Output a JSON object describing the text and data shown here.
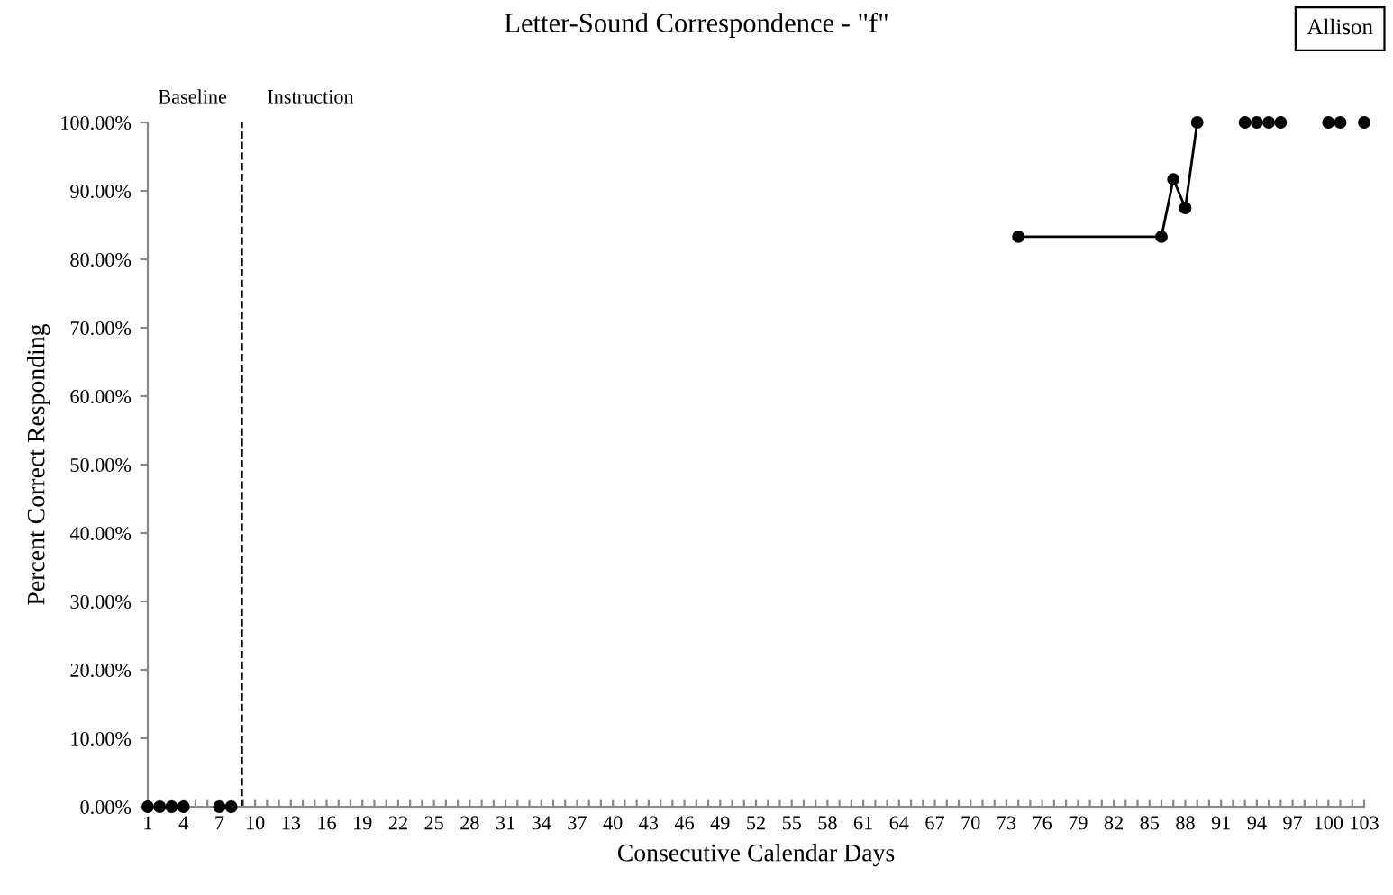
{
  "chart_data": {
    "type": "line",
    "title": "Letter-Sound Correspondence - \"f\"",
    "xlabel": "Consecutive Calendar Days",
    "ylabel": "Percent Correct Responding",
    "annotations": [
      "Baseline",
      "Instruction",
      "Allison"
    ],
    "series": [
      {
        "type": "scatter",
        "color": "#000000",
        "x": [
          1,
          2,
          3,
          4,
          7,
          8
        ],
        "values": [
          0,
          0,
          0,
          0,
          0,
          0
        ]
      },
      {
        "color": "#000000",
        "x": [
          74,
          86,
          87,
          88,
          89,
          90,
          93,
          94,
          95,
          96,
          97,
          100,
          101,
          102,
          103
        ],
        "values": [
          83.3,
          83.3,
          91.7,
          87.5,
          100,
          null,
          100,
          100,
          100,
          100,
          null,
          100,
          100,
          null,
          100
        ]
      }
    ],
    "marker": "circle",
    "line_style": "solid",
    "xlim": [
      1,
      103
    ],
    "xticks": [
      1,
      {
        "value": 2,
        "label": null
      },
      {
        "value": 3,
        "label": null
      },
      4,
      {
        "value": 5,
        "label": null
      },
      {
        "value": 6,
        "label": null
      },
      7,
      {
        "value": 8,
        "label": null
      },
      {
        "value": 9,
        "label": null
      },
      10,
      {
        "value": 11,
        "label": null
      },
      {
        "value": 12,
        "label": null
      },
      13,
      {
        "value": 14,
        "label": null
      },
      {
        "value": 15,
        "label": null
      },
      16,
      {
        "value": 17,
        "label": null
      },
      {
        "value": 18,
        "label": null
      },
      19,
      {
        "value": 20,
        "label": null
      },
      {
        "value": 21,
        "label": null
      },
      22,
      {
        "value": 23,
        "label": null
      },
      {
        "value": 24,
        "label": null
      },
      25,
      {
        "value": 26,
        "label": null
      },
      {
        "value": 27,
        "label": null
      },
      28,
      {
        "value": 29,
        "label": null
      },
      {
        "value": 30,
        "label": null
      },
      31,
      {
        "value": 32,
        "label": null
      },
      {
        "value": 33,
        "label": null
      },
      34,
      {
        "value": 35,
        "label": null
      },
      {
        "value": 36,
        "label": null
      },
      37,
      {
        "value": 38,
        "label": null
      },
      {
        "value": 39,
        "label": null
      },
      40,
      {
        "value": 41,
        "label": null
      },
      {
        "value": 42,
        "label": null
      },
      43,
      {
        "value": 44,
        "label": null
      },
      {
        "value": 45,
        "label": null
      },
      46,
      {
        "value": 47,
        "label": null
      },
      {
        "value": 48,
        "label": null
      },
      49,
      {
        "value": 50,
        "label": null
      },
      {
        "value": 51,
        "label": null
      },
      52,
      {
        "value": 53,
        "label": null
      },
      {
        "value": 54,
        "label": null
      },
      55,
      {
        "value": 56,
        "label": null
      },
      {
        "value": 57,
        "label": null
      },
      58,
      {
        "value": 59,
        "label": null
      },
      {
        "value": 60,
        "label": null
      },
      61,
      {
        "value": 62,
        "label": null
      },
      {
        "value": 63,
        "label": null
      },
      64,
      {
        "value": 65,
        "label": null
      },
      {
        "value": 66,
        "label": null
      },
      67,
      {
        "value": 68,
        "label": null
      },
      {
        "value": 69,
        "label": null
      },
      70,
      {
        "value": 71,
        "label": null
      },
      {
        "value": 72,
        "label": null
      },
      73,
      {
        "value": 74,
        "label": null
      },
      {
        "value": 75,
        "label": null
      },
      76,
      {
        "value": 77,
        "label": null
      },
      {
        "value": 78,
        "label": null
      },
      79,
      {
        "value": 80,
        "label": null
      },
      {
        "value": 81,
        "label": null
      },
      82,
      {
        "value": 83,
        "label": null
      },
      {
        "value": 84,
        "label": null
      },
      85,
      {
        "value": 86,
        "label": null
      },
      {
        "value": 87,
        "label": null
      },
      88,
      {
        "value": 89,
        "label": null
      },
      {
        "value": 90,
        "label": null
      },
      91,
      {
        "value": 92,
        "label": null
      },
      {
        "value": 93,
        "label": null
      },
      94,
      {
        "value": 95,
        "label": null
      },
      {
        "value": 96,
        "label": null
      },
      97,
      {
        "value": 98,
        "label": null
      },
      {
        "value": 99,
        "label": null
      },
      100,
      {
        "value": 101,
        "label": null
      },
      {
        "value": 102,
        "label": null
      },
      103
    ],
    "ylim": [
      0,
      100
    ],
    "yticks": [
      {
        "value": 0,
        "label": "0.00%"
      },
      {
        "value": 10,
        "label": "10.00%"
      },
      {
        "value": 20,
        "label": "20.00%"
      },
      {
        "value": 30,
        "label": "30.00%"
      },
      {
        "value": 40,
        "label": "40.00%"
      },
      {
        "value": 50,
        "label": "50.00%"
      },
      {
        "value": 60,
        "label": "60.00%"
      },
      {
        "value": 70,
        "label": "70.00%"
      },
      {
        "value": 80,
        "label": "80.00%"
      },
      {
        "value": 90,
        "label": "90.00%"
      },
      {
        "value": 100,
        "label": "100.00%"
      }
    ],
    "ref_lines": [
      {
        "axis": "x",
        "value": 8.9,
        "color": "#000000",
        "line_style": "dashed"
      }
    ],
    "grid": false,
    "legend": false
  }
}
